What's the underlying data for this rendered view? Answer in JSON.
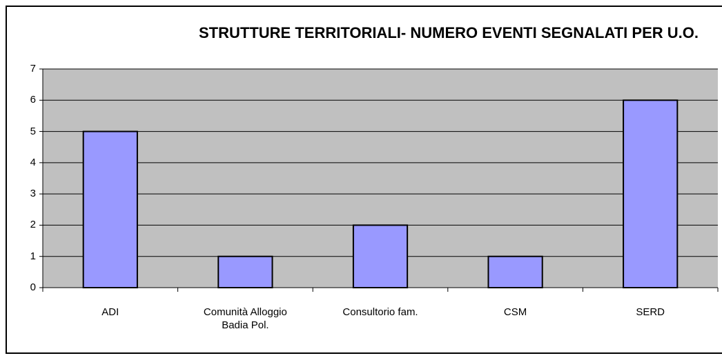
{
  "chart_data": {
    "type": "bar",
    "title": "STRUTTURE TERRITORIALI- NUMERO EVENTI SEGNALATI PER U.O.",
    "categories": [
      "ADI",
      "Comunità Alloggio Badia Pol.",
      "Consultorio fam.",
      "CSM",
      "SERD"
    ],
    "values": [
      5,
      1,
      2,
      1,
      6
    ],
    "color": "#9999ff",
    "plot_color": "#c0c0c0",
    "ylim": [
      0,
      7
    ],
    "yticks": [
      0,
      1,
      2,
      3,
      4,
      5,
      6,
      7
    ],
    "grid": true
  }
}
